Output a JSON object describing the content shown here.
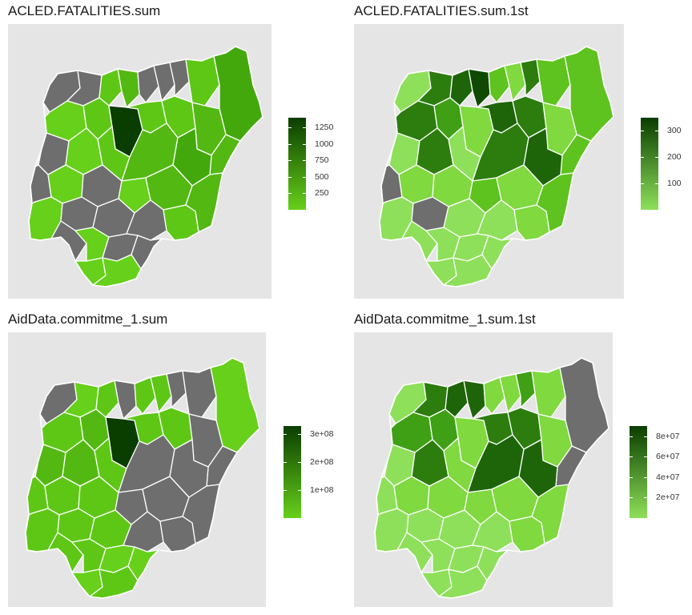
{
  "panels": [
    {
      "title": "ACLED.FATALITIES.sum",
      "scale_type": "sum",
      "colors": {
        "low": "#66d01a",
        "high": "#0a3d00",
        "na": "#6e6e6e"
      },
      "legend_ticks": [
        "1250",
        "1000",
        "750",
        "500",
        "250"
      ],
      "legend_range": [
        0,
        1400
      ],
      "tick_values": [
        1250,
        1000,
        750,
        500,
        250
      ]
    },
    {
      "title": "ACLED.FATALITIES.sum.1st",
      "scale_type": "first",
      "colors": {
        "low": "#8ee05a",
        "high": "#0a3d00",
        "na": "#6e6e6e"
      },
      "legend_ticks": [
        "300",
        "200",
        "100"
      ],
      "legend_range": [
        0,
        350
      ],
      "tick_values": [
        300,
        200,
        100
      ]
    },
    {
      "title": "AidData.commitme_1.sum",
      "scale_type": "sum",
      "colors": {
        "low": "#66d01a",
        "high": "#0a3d00",
        "na": "#6e6e6e"
      },
      "legend_ticks": [
        "3e+08",
        "2e+08",
        "1e+08"
      ],
      "legend_range": [
        0,
        330000000
      ],
      "tick_values": [
        300000000,
        200000000,
        100000000
      ]
    },
    {
      "title": "AidData.commitme_1.sum.1st",
      "scale_type": "first",
      "colors": {
        "low": "#8ee05a",
        "high": "#0a3d00",
        "na": "#6e6e6e"
      },
      "legend_ticks": [
        "8e+07",
        "6e+07",
        "4e+07",
        "2e+07"
      ],
      "legend_range": [
        0,
        90000000
      ],
      "tick_values": [
        80000000,
        60000000,
        40000000,
        20000000
      ]
    }
  ]
}
